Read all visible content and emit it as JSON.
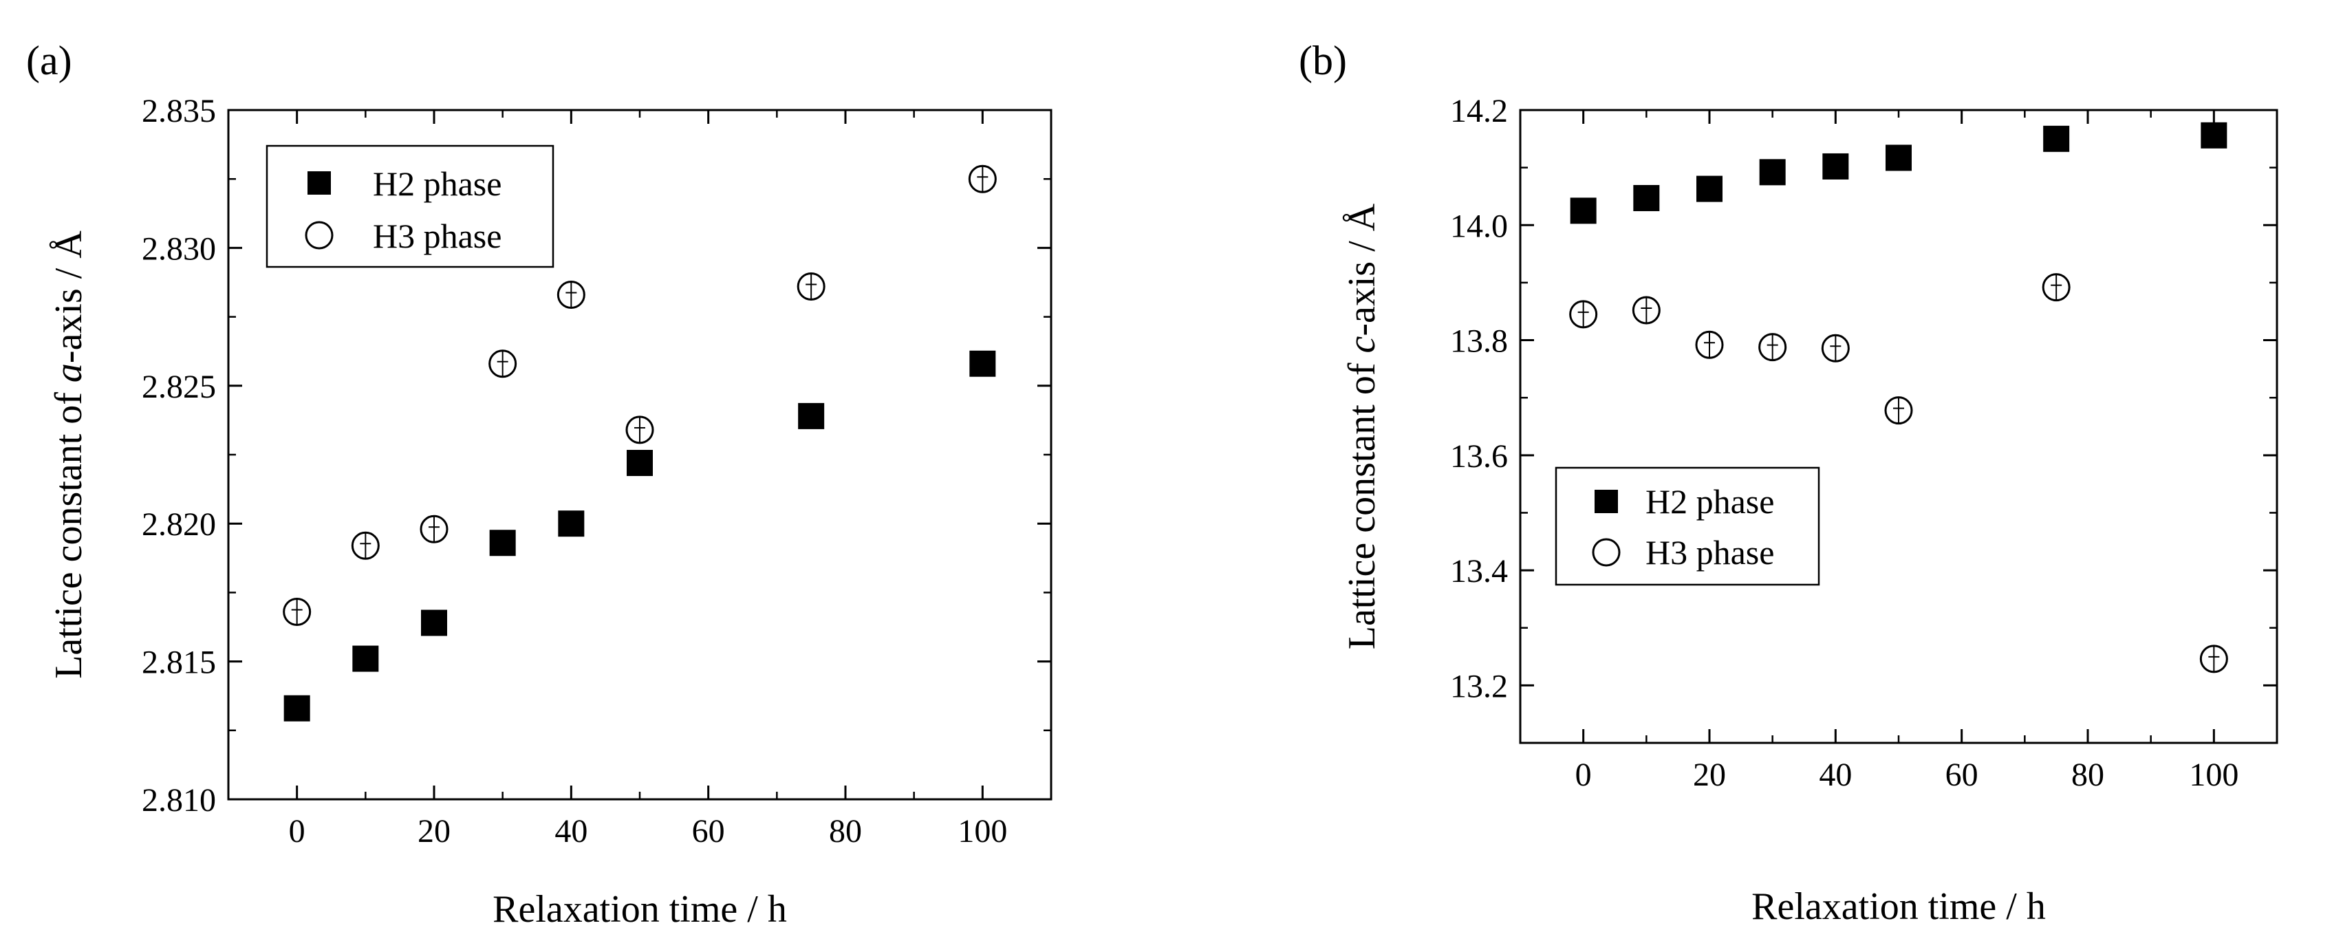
{
  "chart_data": [
    {
      "type": "scatter",
      "panel_label": "(a)",
      "title": "",
      "xlabel": "Relaxation time / h",
      "ylabel_prefix": "Lattice constant of ",
      "ylabel_italic": "a",
      "ylabel_suffix": "-axis / Å",
      "xlim": [
        -10,
        110
      ],
      "ylim": [
        2.81,
        2.835
      ],
      "x_ticks": [
        0,
        20,
        40,
        60,
        80,
        100
      ],
      "y_ticks": [
        2.81,
        2.815,
        2.82,
        2.825,
        2.83,
        2.835
      ],
      "y_tick_labels": [
        "2.810",
        "2.815",
        "2.820",
        "2.825",
        "2.830",
        "2.835"
      ],
      "legend_position": "top-left",
      "series": [
        {
          "name": "H2 phase",
          "marker": "filled-square",
          "color": "#000000",
          "x": [
            0,
            10,
            20,
            30,
            40,
            50,
            75,
            100
          ],
          "y": [
            2.8133,
            2.8151,
            2.8164,
            2.8193,
            2.82,
            2.8222,
            2.8239,
            2.8258
          ]
        },
        {
          "name": "H3 phase",
          "marker": "open-circle",
          "color": "#000000",
          "x": [
            0,
            10,
            20,
            30,
            40,
            50,
            75,
            100
          ],
          "y": [
            2.8168,
            2.8192,
            2.8198,
            2.8258,
            2.8283,
            2.8234,
            2.8286,
            2.8325
          ]
        }
      ]
    },
    {
      "type": "scatter",
      "panel_label": "(b)",
      "title": "",
      "xlabel": "Relaxation time / h",
      "ylabel_prefix": "Lattice constant of ",
      "ylabel_italic": "c",
      "ylabel_suffix": "-axis / Å",
      "xlim": [
        -10,
        110
      ],
      "ylim": [
        13.1,
        14.2
      ],
      "x_ticks": [
        0,
        20,
        40,
        60,
        80,
        100
      ],
      "y_ticks": [
        13.2,
        13.4,
        13.6,
        13.8,
        14.0,
        14.2
      ],
      "y_tick_labels": [
        "13.2",
        "13.4",
        "13.6",
        "13.8",
        "14.0",
        "14.2"
      ],
      "legend_position": "center-left",
      "series": [
        {
          "name": "H2 phase",
          "marker": "filled-square",
          "color": "#000000",
          "x": [
            0,
            10,
            20,
            30,
            40,
            50,
            75,
            100
          ],
          "y": [
            14.025,
            14.047,
            14.063,
            14.092,
            14.102,
            14.117,
            14.15,
            14.156
          ]
        },
        {
          "name": "H3 phase",
          "marker": "open-circle",
          "color": "#000000",
          "x": [
            0,
            10,
            20,
            30,
            40,
            50,
            75,
            100
          ],
          "y": [
            13.845,
            13.852,
            13.792,
            13.788,
            13.786,
            13.678,
            13.892,
            13.246
          ]
        }
      ]
    }
  ]
}
